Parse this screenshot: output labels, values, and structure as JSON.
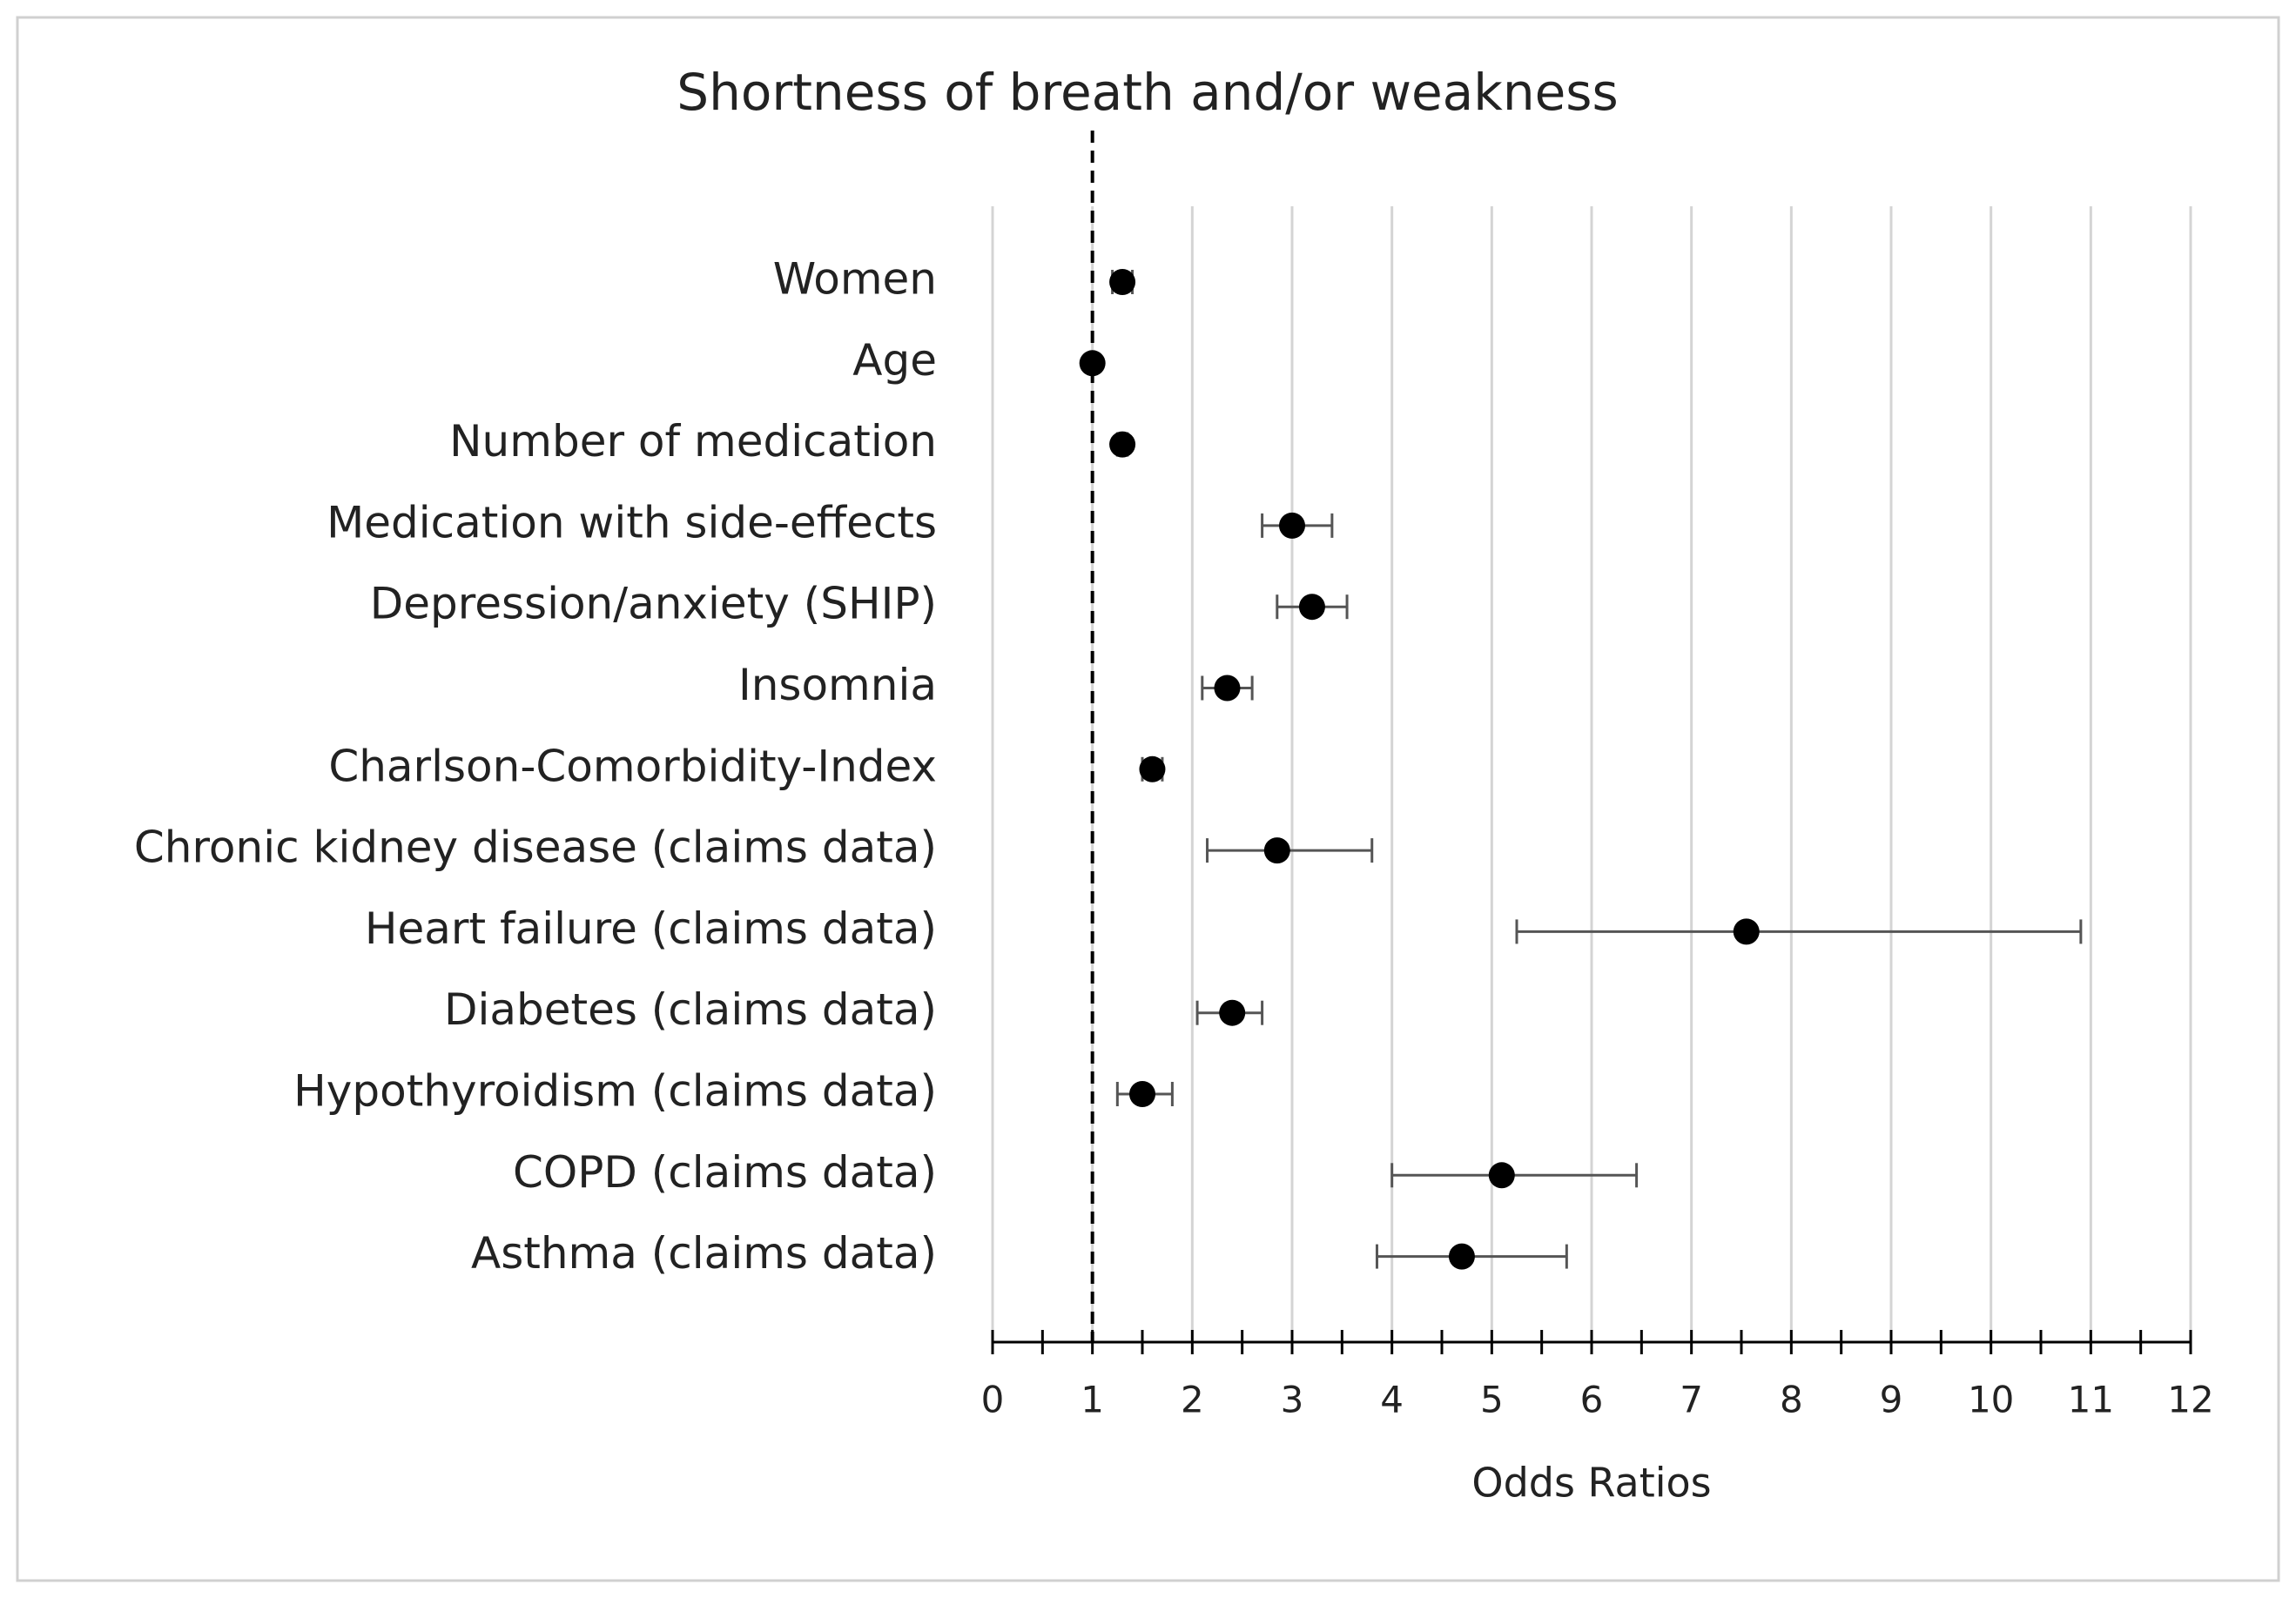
{
  "chart_data": {
    "type": "forest",
    "title": "Shortness of breath and/or weakness",
    "x_label": "Odds Ratios",
    "categories": [
      "Women",
      "Age",
      "Number of medication",
      "Medication with side-effects",
      "Depression/anxiety (SHIP)",
      "Insomnia",
      "Charlson-Comorbidity-Index",
      "Chronic kidney disease (claims data)",
      "Heart failure (claims data)",
      "Diabetes (claims data)",
      "Hypothyroidism (claims data)",
      "COPD (claims data)",
      "Asthma (claims data)"
    ],
    "series": [
      {
        "color": "#000000",
        "values": [
          1.3,
          1.0,
          1.3,
          3.0,
          3.2,
          2.35,
          1.6,
          2.85,
          7.55,
          2.4,
          1.5,
          5.1,
          4.7
        ],
        "lower": [
          1.2,
          0.98,
          1.25,
          2.7,
          2.85,
          2.1,
          1.5,
          2.15,
          5.25,
          2.05,
          1.25,
          4.0,
          3.85
        ],
        "upper": [
          1.4,
          1.02,
          1.35,
          3.4,
          3.55,
          2.6,
          1.7,
          3.8,
          10.9,
          2.7,
          1.8,
          6.45,
          5.75
        ]
      }
    ],
    "xlim": [
      0,
      12
    ],
    "xticks": [
      0,
      1,
      2,
      3,
      4,
      5,
      6,
      7,
      8,
      9,
      10,
      11,
      12
    ],
    "reference_line": 1,
    "grid": true
  }
}
